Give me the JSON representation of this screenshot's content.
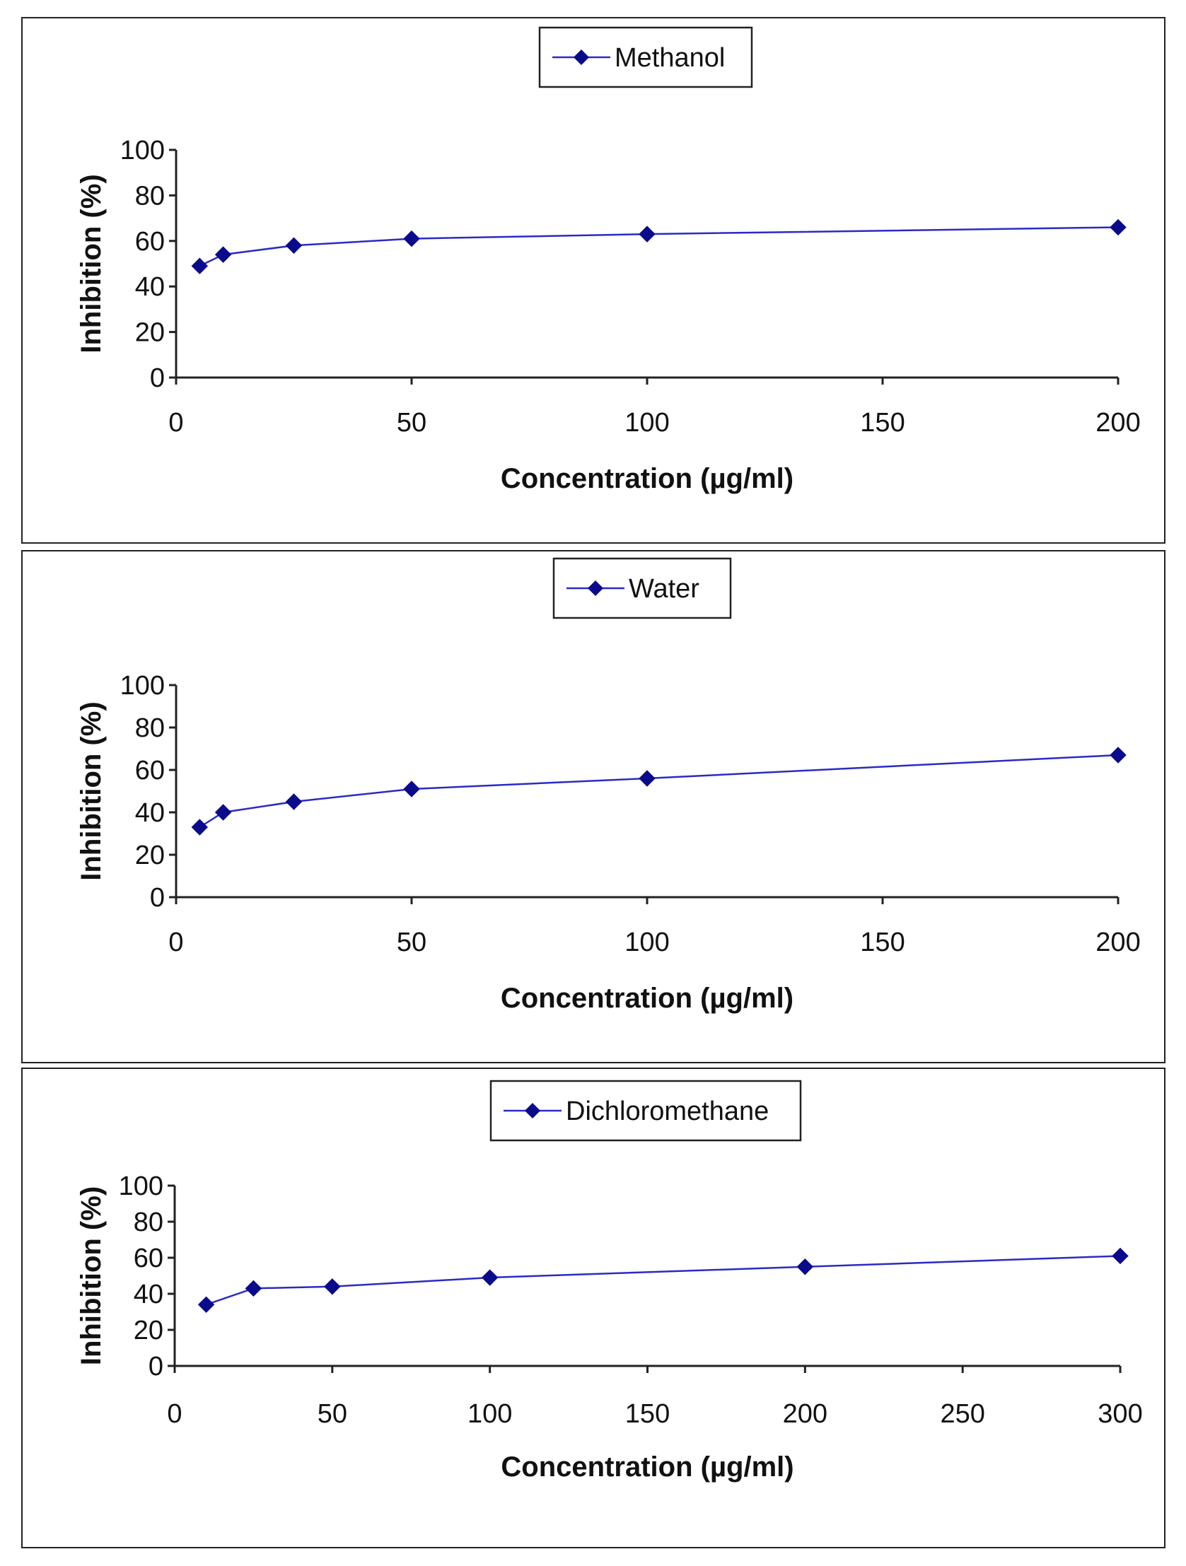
{
  "chart_data": [
    {
      "type": "line",
      "title": "",
      "xlabel": "Concentration (µg/ml)",
      "ylabel": "Inhibition (%)",
      "xlim": [
        0,
        200
      ],
      "ylim": [
        0,
        100
      ],
      "xticks": [
        0,
        50,
        100,
        150,
        200
      ],
      "yticks": [
        0,
        20,
        40,
        60,
        80,
        100
      ],
      "legend_position": "top-center",
      "grid": false,
      "series": [
        {
          "name": "Methanol",
          "color": "#0a0a8c",
          "x": [
            5,
            10,
            25,
            50,
            100,
            200
          ],
          "values": [
            49,
            54,
            58,
            61,
            63,
            66
          ]
        }
      ]
    },
    {
      "type": "line",
      "title": "",
      "xlabel": "Concentration (µg/ml)",
      "ylabel": "Inhibition (%)",
      "xlim": [
        0,
        200
      ],
      "ylim": [
        0,
        100
      ],
      "xticks": [
        0,
        50,
        100,
        150,
        200
      ],
      "yticks": [
        0,
        20,
        40,
        60,
        80,
        100
      ],
      "legend_position": "top-center",
      "grid": false,
      "series": [
        {
          "name": "Water",
          "color": "#0a0a8c",
          "x": [
            5,
            10,
            25,
            50,
            100,
            200
          ],
          "values": [
            33,
            40,
            45,
            51,
            56,
            67
          ]
        }
      ]
    },
    {
      "type": "line",
      "title": "",
      "xlabel": "Concentration (µg/ml)",
      "ylabel": "Inhibition (%)",
      "xlim": [
        0,
        300
      ],
      "ylim": [
        0,
        100
      ],
      "xticks": [
        0,
        50,
        100,
        150,
        200,
        250,
        300
      ],
      "yticks": [
        0,
        20,
        40,
        60,
        80,
        100
      ],
      "legend_position": "top-center",
      "grid": false,
      "series": [
        {
          "name": "Dichloromethane",
          "color": "#0a0a8c",
          "x": [
            10,
            25,
            50,
            100,
            200,
            300
          ],
          "values": [
            34,
            43,
            44,
            49,
            55,
            61
          ]
        }
      ]
    }
  ]
}
